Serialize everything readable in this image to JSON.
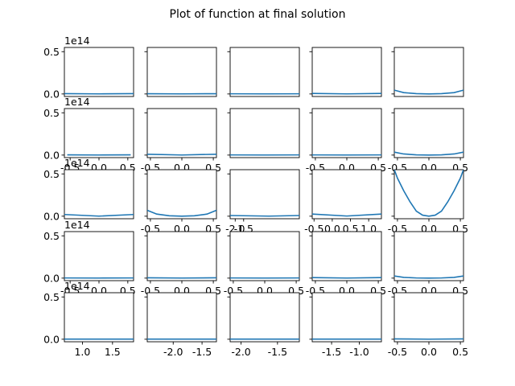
{
  "chart_data": {
    "type": "line",
    "title": "Plot of function at final solution",
    "layout": {
      "rows": 5,
      "cols": 5,
      "sharey": true
    },
    "colors": {
      "line": "#1f77b4",
      "axes": "#000000",
      "background": "#ffffff"
    },
    "ylim": [
      -0.03,
      0.55
    ],
    "y_ticks": [
      0.0,
      0.5
    ],
    "y_tick_labels": [
      "0.0",
      "0.5"
    ],
    "y_offset_label": "1e14",
    "panels": [
      {
        "xlim": [
          -0.55,
          0.55
        ],
        "x_ticks": [],
        "x_tick_labels": [],
        "x": [
          -0.55,
          0.0,
          0.55
        ],
        "y": [
          0.004,
          0.001,
          0.004
        ]
      },
      {
        "xlim": [
          -0.55,
          0.55
        ],
        "x_ticks": [],
        "x_tick_labels": [],
        "x": [
          -0.55,
          0.0,
          0.55
        ],
        "y": [
          0.003,
          0.001,
          0.003
        ]
      },
      {
        "xlim": [
          -0.55,
          0.55
        ],
        "x_ticks": [],
        "x_tick_labels": [],
        "x": [
          -0.55,
          0.0,
          0.55
        ],
        "y": [
          0.002,
          0.001,
          0.002
        ]
      },
      {
        "xlim": [
          -0.55,
          0.55
        ],
        "x_ticks": [],
        "x_tick_labels": [],
        "x": [
          -0.55,
          0.0,
          0.55
        ],
        "y": [
          0.006,
          0.001,
          0.006
        ]
      },
      {
        "xlim": [
          -0.55,
          0.55
        ],
        "x_ticks": [],
        "x_tick_labels": [],
        "x": [
          -0.55,
          -0.4,
          -0.2,
          0.0,
          0.2,
          0.4,
          0.55
        ],
        "y": [
          0.045,
          0.016,
          0.004,
          0.0,
          0.004,
          0.016,
          0.045
        ]
      },
      {
        "xlim": [
          -0.6,
          0.6
        ],
        "x_ticks": [
          -0.5,
          0.0,
          0.5
        ],
        "x_tick_labels": [
          "-0.5",
          "0.0",
          "0.5"
        ],
        "x": [
          -0.55,
          0.0,
          0.55
        ],
        "y": [
          0.003,
          0.001,
          0.003
        ]
      },
      {
        "xlim": [
          -0.55,
          0.55
        ],
        "x_ticks": [
          -0.5,
          0.0,
          0.5
        ],
        "x_tick_labels": [
          "-0.5",
          "0.0",
          "0.5"
        ],
        "x": [
          -0.55,
          0.0,
          0.55
        ],
        "y": [
          0.01,
          0.001,
          0.01
        ]
      },
      {
        "xlim": [
          -0.55,
          0.55
        ],
        "x_ticks": [],
        "x_tick_labels": [],
        "x": [
          -0.55,
          0.0,
          0.55
        ],
        "y": [
          0.002,
          0.001,
          0.002
        ]
      },
      {
        "xlim": [
          -0.55,
          0.55
        ],
        "x_ticks": [
          -0.5,
          0.0,
          0.5
        ],
        "x_tick_labels": [
          "-0.5",
          "0.0",
          "0.5"
        ],
        "x": [
          -0.55,
          0.0,
          0.55
        ],
        "y": [
          0.002,
          0.001,
          0.002
        ]
      },
      {
        "xlim": [
          -0.55,
          0.55
        ],
        "x_ticks": [
          -0.5,
          0.0,
          0.5
        ],
        "x_tick_labels": [
          "-0.5",
          "0.0",
          "0.5"
        ],
        "x": [
          -0.55,
          -0.4,
          -0.2,
          0.0,
          0.2,
          0.4,
          0.55
        ],
        "y": [
          0.035,
          0.013,
          0.003,
          0.0,
          0.003,
          0.013,
          0.035
        ]
      },
      {
        "xlim": [
          -1.0,
          1.0
        ],
        "x_ticks": [],
        "x_tick_labels": [],
        "x": [
          -1.0,
          0.0,
          1.0
        ],
        "y": [
          0.02,
          0.001,
          0.02
        ]
      },
      {
        "xlim": [
          -0.55,
          0.55
        ],
        "x_ticks": [
          -0.5,
          0.0,
          0.5
        ],
        "x_tick_labels": [
          "-0.5",
          "0.0",
          "0.5"
        ],
        "x": [
          -0.55,
          -0.4,
          -0.2,
          0.0,
          0.2,
          0.4,
          0.55
        ],
        "y": [
          0.07,
          0.025,
          0.005,
          0.0,
          0.005,
          0.025,
          0.07
        ]
      },
      {
        "xlim": [
          -2.3,
          1.8
        ],
        "x_ticks": [
          -2.0,
          -1.5
        ],
        "x_tick_labels": [
          "-2.0",
          "-1.5"
        ],
        "x": [
          -2.3,
          0.0,
          1.8
        ],
        "y": [
          0.008,
          0.001,
          0.008
        ]
      },
      {
        "xlim": [
          -0.55,
          1.35
        ],
        "x_ticks": [
          -0.5,
          0.0,
          0.5,
          1.0
        ],
        "x_tick_labels": [
          "-0.5",
          "0.0",
          "0.5",
          "1.0"
        ],
        "x": [
          -0.55,
          0.4,
          1.35
        ],
        "y": [
          0.025,
          0.002,
          0.025
        ]
      },
      {
        "xlim": [
          -0.55,
          0.55
        ],
        "x_ticks": [
          -0.5,
          0.0,
          0.5
        ],
        "x_tick_labels": [
          "-0.5",
          "0.0",
          "0.5"
        ],
        "x": [
          -0.55,
          -0.5,
          -0.4,
          -0.3,
          -0.2,
          -0.1,
          0.0,
          0.1,
          0.2,
          0.3,
          0.4,
          0.5,
          0.55
        ],
        "y": [
          0.55,
          0.45,
          0.3,
          0.17,
          0.06,
          0.012,
          0.0,
          0.012,
          0.06,
          0.17,
          0.3,
          0.45,
          0.55
        ]
      },
      {
        "xlim": [
          -0.6,
          0.6
        ],
        "x_ticks": [
          -0.5,
          0.0,
          0.5
        ],
        "x_tick_labels": [
          "-0.5",
          "0.0",
          "0.5"
        ],
        "x": [
          -0.6,
          0.0,
          0.6
        ],
        "y": [
          0.002,
          0.001,
          0.002
        ]
      },
      {
        "xlim": [
          -0.55,
          0.55
        ],
        "x_ticks": [
          -0.5,
          0.0,
          0.5
        ],
        "x_tick_labels": [
          "-0.5",
          "0.0",
          "0.5"
        ],
        "x": [
          -0.55,
          0.0,
          0.55
        ],
        "y": [
          0.004,
          0.001,
          0.004
        ]
      },
      {
        "xlim": [
          -0.55,
          0.55
        ],
        "x_ticks": [
          -0.5,
          0.0,
          0.5
        ],
        "x_tick_labels": [
          "-0.5",
          "0.0",
          "0.5"
        ],
        "x": [
          -0.55,
          0.0,
          0.55
        ],
        "y": [
          0.002,
          0.001,
          0.002
        ]
      },
      {
        "xlim": [
          -0.55,
          0.55
        ],
        "x_ticks": [
          -0.5,
          0.0,
          0.5
        ],
        "x_tick_labels": [
          "-0.5",
          "0.0",
          "0.5"
        ],
        "x": [
          -0.55,
          0.0,
          0.55
        ],
        "y": [
          0.006,
          0.001,
          0.006
        ]
      },
      {
        "xlim": [
          -0.55,
          0.55
        ],
        "x_ticks": [
          -0.5,
          0.0,
          0.5
        ],
        "x_tick_labels": [
          "-0.5",
          "0.0",
          "0.5"
        ],
        "x": [
          -0.55,
          -0.4,
          -0.2,
          0.0,
          0.2,
          0.4,
          0.55
        ],
        "y": [
          0.025,
          0.009,
          0.002,
          0.0,
          0.002,
          0.009,
          0.025
        ]
      },
      {
        "xlim": [
          0.7,
          1.85
        ],
        "x_ticks": [
          1.0,
          1.5
        ],
        "x_tick_labels": [
          "1.0",
          "1.5"
        ],
        "x": [
          0.7,
          1.85
        ],
        "y": [
          0.0015,
          0.0015
        ]
      },
      {
        "xlim": [
          -2.45,
          -1.25
        ],
        "x_ticks": [
          -2.0,
          -1.5
        ],
        "x_tick_labels": [
          "-2.0",
          "-1.5"
        ],
        "x": [
          -2.45,
          -1.25
        ],
        "y": [
          0.0015,
          0.0015
        ]
      },
      {
        "xlim": [
          -2.15,
          -1.2
        ],
        "x_ticks": [
          -2.0,
          -1.5
        ],
        "x_tick_labels": [
          "-2.0",
          "-1.5"
        ],
        "x": [
          -2.15,
          -1.2
        ],
        "y": [
          0.0015,
          0.0015
        ]
      },
      {
        "xlim": [
          -1.85,
          -0.6
        ],
        "x_ticks": [
          -1.5,
          -1.0
        ],
        "x_tick_labels": [
          "-1.5",
          "-1.0"
        ],
        "x": [
          -1.85,
          -0.6
        ],
        "y": [
          0.0015,
          0.0015
        ]
      },
      {
        "xlim": [
          -0.55,
          0.55
        ],
        "x_ticks": [
          -0.5,
          0.0,
          0.5
        ],
        "x_tick_labels": [
          "-0.5",
          "0.0",
          "0.5"
        ],
        "x": [
          -0.55,
          0.0,
          0.55
        ],
        "y": [
          0.004,
          0.001,
          0.004
        ]
      }
    ]
  }
}
